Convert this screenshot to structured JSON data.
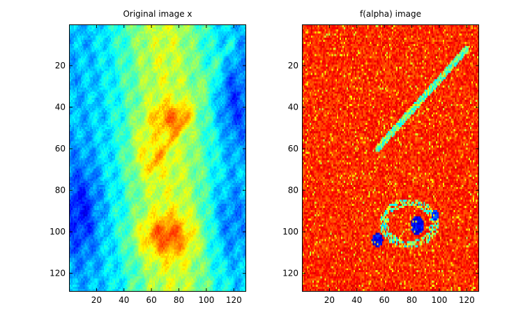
{
  "chart_data": [
    {
      "type": "heatmap",
      "title": "Original image x",
      "colormap": "jet",
      "xlim": [
        0.5,
        128.5
      ],
      "ylim": [
        128.5,
        0.5
      ],
      "xticks": [
        20,
        40,
        60,
        80,
        100,
        120
      ],
      "yticks": [
        20,
        40,
        60,
        80,
        100,
        120
      ],
      "xlabel": "",
      "ylabel": "",
      "grid": false
    },
    {
      "type": "heatmap",
      "title": "f(alpha) image",
      "colormap": "jet",
      "xlim": [
        0.5,
        128.5
      ],
      "ylim": [
        128.5,
        0.5
      ],
      "xticks": [
        20,
        40,
        60,
        80,
        100,
        120
      ],
      "yticks": [
        20,
        40,
        60,
        80,
        100,
        120
      ],
      "xlabel": "",
      "ylabel": "",
      "grid": false
    }
  ]
}
